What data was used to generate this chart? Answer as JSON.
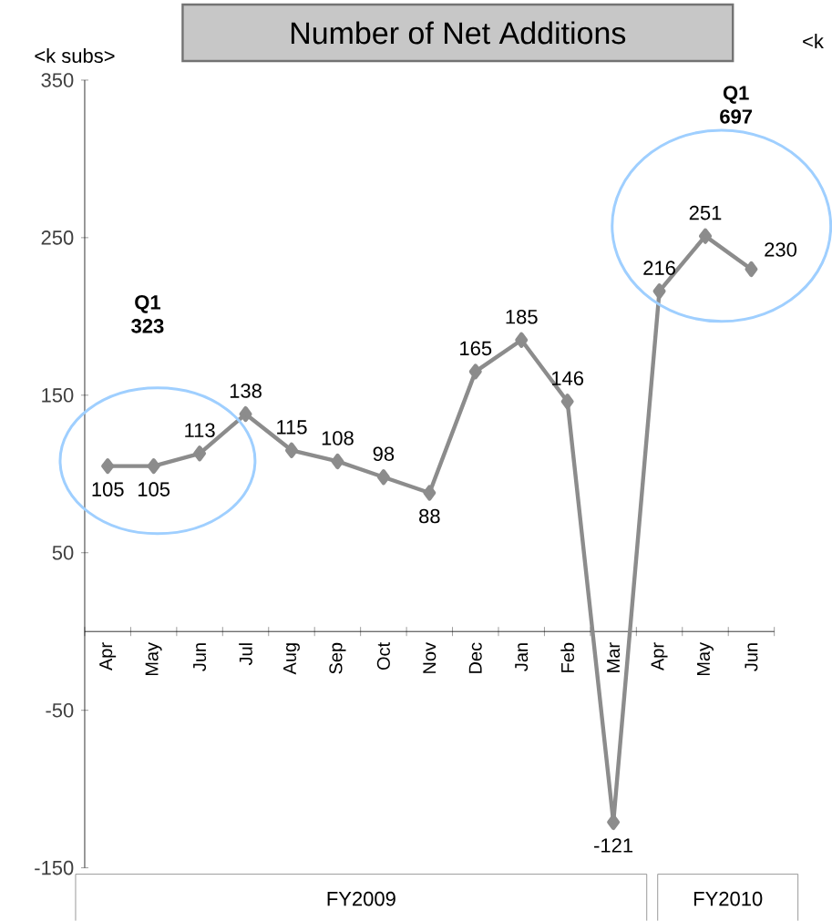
{
  "chart_data": {
    "type": "line",
    "title": "Number of Net Additions",
    "categories": [
      "Apr",
      "May",
      "Jun",
      "Jul",
      "Aug",
      "Sep",
      "Oct",
      "Nov",
      "Dec",
      "Jan",
      "Feb",
      "Mar",
      "Apr",
      "May",
      "Jun"
    ],
    "values": [
      105,
      105,
      113,
      138,
      115,
      108,
      98,
      88,
      165,
      185,
      146,
      -121,
      216,
      251,
      230
    ],
    "color": "#8c8c8c",
    "marker": "diamond",
    "line_style": "solid",
    "value_labels": [
      "105",
      "105",
      "113",
      "138",
      "115",
      "108",
      "98",
      "88",
      "165",
      "185",
      "146",
      "-121",
      "216",
      "251",
      "230"
    ],
    "ylim": [
      -150,
      350
    ],
    "yticks": [
      -150,
      -50,
      50,
      150,
      250,
      350
    ],
    "annotations": [
      "<k subs>",
      "<k",
      "Q1 323",
      "Q1 697",
      "FY2009",
      "FY2010"
    ]
  }
}
